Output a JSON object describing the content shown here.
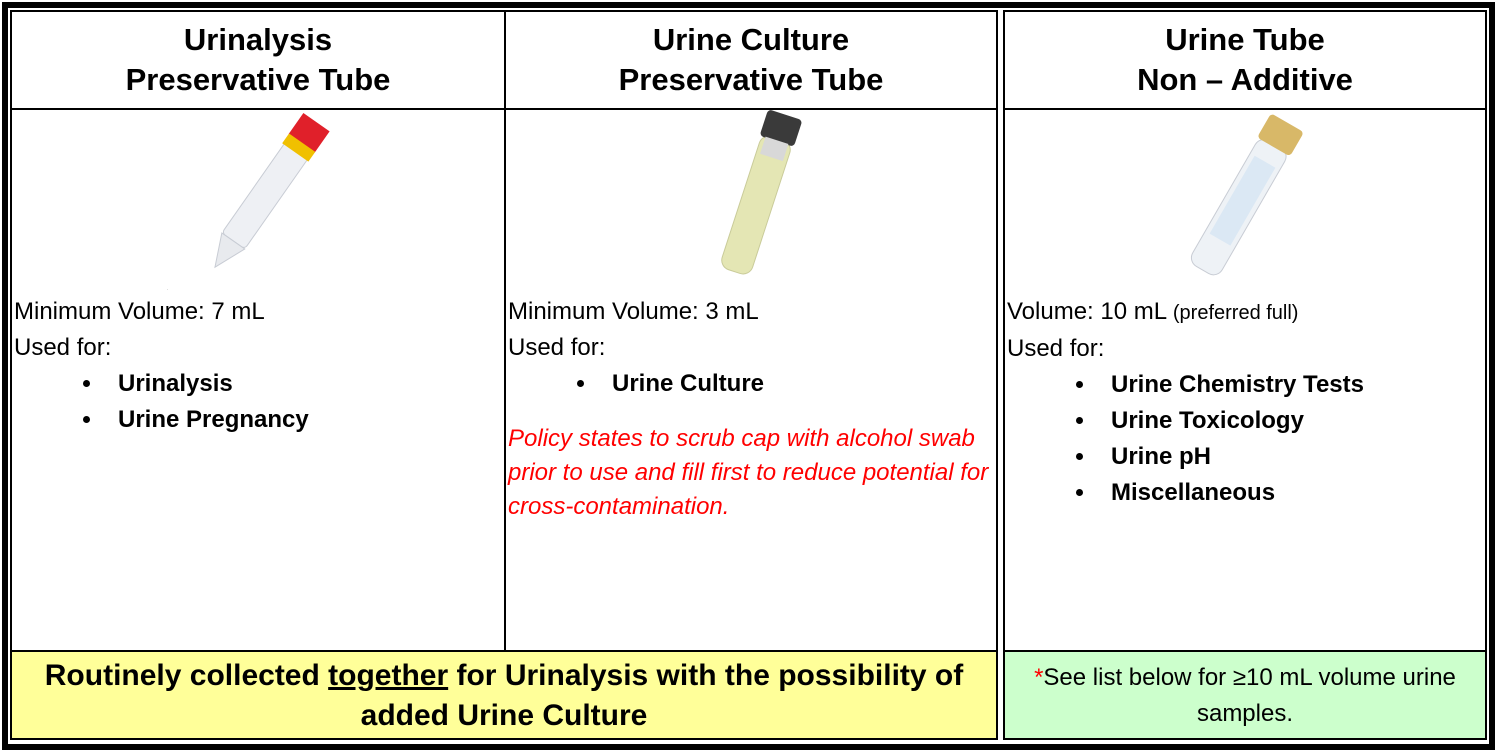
{
  "columns": [
    {
      "header": [
        "Urinalysis",
        "Preservative Tube"
      ],
      "volume": "Minimum Volume:  7 mL",
      "used_for": "Used for:",
      "items": [
        "Urinalysis",
        "Urine Pregnancy"
      ]
    },
    {
      "header": [
        "Urine Culture",
        "Preservative Tube"
      ],
      "volume": "Minimum Volume:  3 mL",
      "used_for": "Used for:",
      "items": [
        "Urine Culture"
      ],
      "note": "Policy states to scrub cap with alcohol swab prior to use and fill first to reduce potential for cross-contamination."
    },
    {
      "header": [
        "Urine Tube",
        "Non – Additive"
      ],
      "volume": "Volume: 10 mL",
      "volume_note": "(preferred full)",
      "used_for": "Used for:",
      "items": [
        "Urine Chemistry Tests",
        "Urine Toxicology",
        "Urine pH",
        "Miscellaneous"
      ]
    }
  ],
  "footer_left": {
    "before": "Routinely collected ",
    "underlined": "together",
    "after": " for Urinalysis with the possibility of added Urine Culture"
  },
  "footer_right": {
    "mark": "*",
    "text": "See list below for ≥10 mL volume urine samples."
  }
}
